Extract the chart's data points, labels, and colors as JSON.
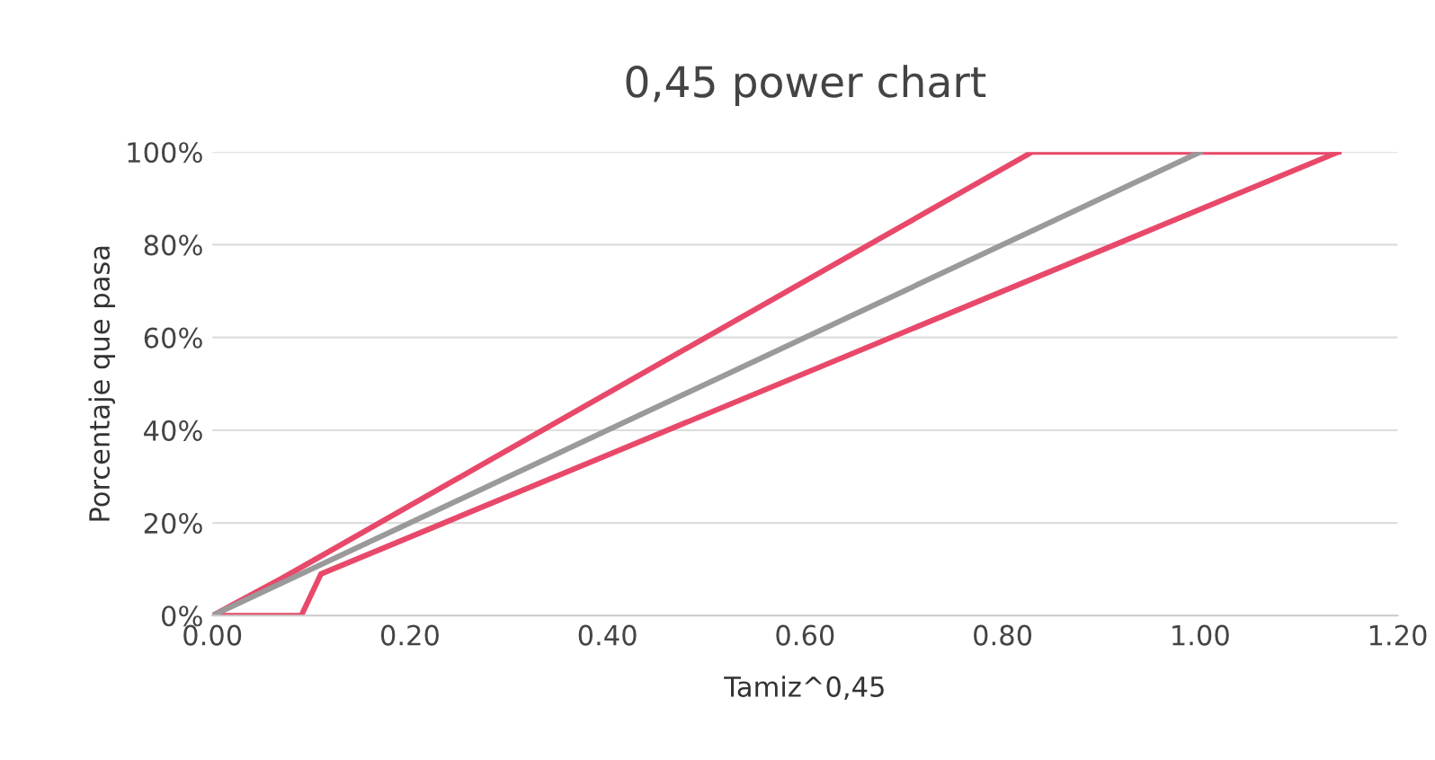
{
  "chart_data": {
    "type": "line",
    "title": "0,45 power chart",
    "xlabel": "Tamiz^0,45",
    "ylabel": "Porcentaje que pasa",
    "series": [
      {
        "color": "#e8496a",
        "x": [
          0,
          0.07,
          0.83,
          1.14
        ],
        "values": [
          0,
          8,
          100,
          100
        ]
      },
      {
        "color": "#e8496a",
        "x": [
          0,
          0.09,
          0.11,
          1.14
        ],
        "values": [
          0,
          0,
          9,
          100
        ]
      },
      {
        "color": "#9a9a9a",
        "x": [
          0,
          1.0
        ],
        "values": [
          0,
          100
        ]
      }
    ],
    "xlim": [
      0,
      1.2
    ],
    "xticks": [
      {
        "value": 0,
        "label": "0.00"
      },
      {
        "value": 0.2,
        "label": "0.20"
      },
      {
        "value": 0.4,
        "label": "0.40"
      },
      {
        "value": 0.6,
        "label": "0.60"
      },
      {
        "value": 0.8,
        "label": "0.80"
      },
      {
        "value": 1.0,
        "label": "1.00"
      },
      {
        "value": 1.2,
        "label": "1.20"
      }
    ],
    "ylim": [
      0,
      100
    ],
    "yticks": [
      {
        "value": 0,
        "label": "0%"
      },
      {
        "value": 20,
        "label": "20%"
      },
      {
        "value": 40,
        "label": "40%"
      },
      {
        "value": 60,
        "label": "60%"
      },
      {
        "value": 80,
        "label": "80%"
      },
      {
        "value": 100,
        "label": "100%"
      }
    ],
    "grid": "y",
    "marker": "none",
    "line_style": "solid"
  }
}
